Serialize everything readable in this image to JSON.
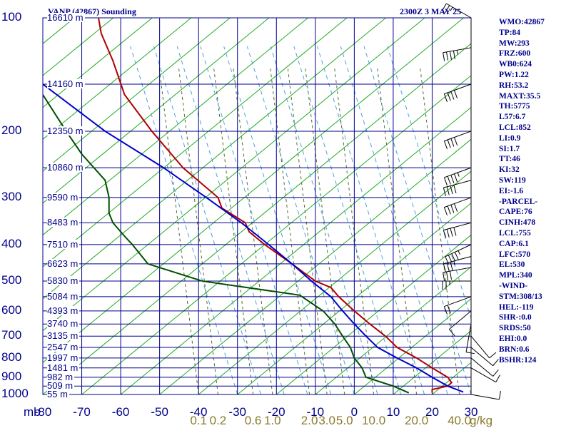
{
  "title_left": "VANP (42867) Sounding",
  "title_right": "2300Z  3 MAY 25",
  "indices": [
    "WMO:42867",
    "TP:84",
    "MW:293",
    "FRZ:600",
    "WB0:624",
    "PW:1.22",
    "RH:53.2",
    "MAXT:35.5",
    "TH:5775",
    "L57:6.7",
    "LCL:852",
    "LI:0.9",
    "SI:1.7",
    "TT:46",
    "KI:32",
    "SW:119",
    "EI:-1.6",
    "-PARCEL-",
    "CAPE:76",
    "CINH:478",
    "LCL:755",
    "CAP:6.1",
    "LFC:570",
    "EL:530",
    "MPL:340",
    "-WIND-",
    "STM:308/13",
    "HEL:-119",
    "SHR-:0.0",
    "SRDS:50",
    "EHI:0.0",
    "BRN:0.6",
    "BSHR:124"
  ],
  "chart_data": {
    "type": "line",
    "y_unit": "mb",
    "y_scale": "log",
    "y_range": [
      1000,
      100
    ],
    "x_range": [
      -80,
      30
    ],
    "pressure_ticks": [
      "100",
      "200",
      "300",
      "400",
      "500",
      "600",
      "700",
      "800",
      "900",
      "1000"
    ],
    "pressure_tick_values": [
      100,
      200,
      300,
      400,
      500,
      600,
      700,
      800,
      900,
      1000
    ],
    "temperature_ticks": [
      "-80",
      "-70",
      "-60",
      "-50",
      "-40",
      "-30",
      "-20",
      "-10",
      "0",
      "10",
      "20",
      "30"
    ],
    "temperature_tick_values": [
      -80,
      -70,
      -60,
      -50,
      -40,
      -30,
      -20,
      -10,
      0,
      10,
      20,
      30
    ],
    "height_labels": [
      {
        "p": 100,
        "text": "16610 m"
      },
      {
        "p": 150,
        "text": "14160 m"
      },
      {
        "p": 200,
        "text": "12350 m"
      },
      {
        "p": 250,
        "text": "10860 m"
      },
      {
        "p": 300,
        "text": "9590 m"
      },
      {
        "p": 350,
        "text": "8483 m"
      },
      {
        "p": 400,
        "text": "7510 m"
      },
      {
        "p": 450,
        "text": "6623 m"
      },
      {
        "p": 500,
        "text": "5830 m"
      },
      {
        "p": 550,
        "text": "5084 m"
      },
      {
        "p": 600,
        "text": "4393 m"
      },
      {
        "p": 650,
        "text": "3740 m"
      },
      {
        "p": 700,
        "text": "3135 m"
      },
      {
        "p": 750,
        "text": "2547 m"
      },
      {
        "p": 800,
        "text": "1997 m"
      },
      {
        "p": 850,
        "text": "1481 m"
      },
      {
        "p": 900,
        "text": "982 m"
      },
      {
        "p": 950,
        "text": "509 m"
      },
      {
        "p": 1000,
        "text": "55 m"
      }
    ],
    "mixing_ratio_unit": "g/kg",
    "mixing_ratio_labels": [
      {
        "t": -40,
        "text": "0.1"
      },
      {
        "t": -35,
        "text": "0.2"
      },
      {
        "t": -26,
        "text": "0.6"
      },
      {
        "t": -21,
        "text": "1.0"
      },
      {
        "t": -11.5,
        "text": "2.0"
      },
      {
        "t": -7,
        "text": "3.0"
      },
      {
        "t": -2.5,
        "text": "5.0"
      },
      {
        "t": 5,
        "text": "10.0"
      },
      {
        "t": 16,
        "text": "20.0"
      },
      {
        "t": 27,
        "text": "40.0"
      }
    ],
    "series": [
      {
        "role": "temperature",
        "color": "#b00000",
        "points": [
          [
            96,
            -66
          ],
          [
            110,
            -65
          ],
          [
            130,
            -62
          ],
          [
            160,
            -59
          ],
          [
            200,
            -52
          ],
          [
            250,
            -44
          ],
          [
            300,
            -35
          ],
          [
            320,
            -34
          ],
          [
            350,
            -28
          ],
          [
            370,
            -27
          ],
          [
            400,
            -23
          ],
          [
            450,
            -16
          ],
          [
            500,
            -10
          ],
          [
            520,
            -6
          ],
          [
            550,
            -4
          ],
          [
            600,
            0
          ],
          [
            650,
            4
          ],
          [
            700,
            8
          ],
          [
            750,
            11
          ],
          [
            800,
            16
          ],
          [
            850,
            20
          ],
          [
            900,
            24
          ],
          [
            930,
            25
          ],
          [
            950,
            24
          ],
          [
            970,
            20
          ],
          [
            990,
            20
          ]
        ]
      },
      {
        "role": "dewpoint",
        "color": "#004f00",
        "points": [
          [
            160,
            -80
          ],
          [
            200,
            -74
          ],
          [
            230,
            -70
          ],
          [
            270,
            -64
          ],
          [
            300,
            -63
          ],
          [
            330,
            -63
          ],
          [
            350,
            -62
          ],
          [
            380,
            -59
          ],
          [
            400,
            -57
          ],
          [
            450,
            -53
          ],
          [
            500,
            -39
          ],
          [
            545,
            -14
          ],
          [
            600,
            -8
          ],
          [
            650,
            -5
          ],
          [
            700,
            -3
          ],
          [
            750,
            -1
          ],
          [
            800,
            0
          ],
          [
            850,
            2
          ],
          [
            900,
            3
          ],
          [
            950,
            10
          ],
          [
            990,
            14
          ]
        ]
      },
      {
        "role": "parcel",
        "color": "#0000cc",
        "points": [
          [
            150,
            -80
          ],
          [
            200,
            -64
          ],
          [
            250,
            -49
          ],
          [
            300,
            -38
          ],
          [
            350,
            -29
          ],
          [
            400,
            -22
          ],
          [
            450,
            -16
          ],
          [
            500,
            -11
          ],
          [
            550,
            -6
          ],
          [
            600,
            -3
          ],
          [
            650,
            0
          ],
          [
            700,
            3
          ],
          [
            750,
            6
          ],
          [
            800,
            11
          ],
          [
            850,
            16
          ],
          [
            900,
            20
          ],
          [
            950,
            24
          ],
          [
            985,
            28
          ]
        ]
      }
    ],
    "wind_barbs": [
      {
        "p": 100,
        "dir": 300,
        "kt": 25
      },
      {
        "p": 120,
        "dir": 260,
        "kt": 45
      },
      {
        "p": 150,
        "dir": 250,
        "kt": 40
      },
      {
        "p": 200,
        "dir": 250,
        "kt": 40
      },
      {
        "p": 250,
        "dir": 250,
        "kt": 45
      },
      {
        "p": 270,
        "dir": 255,
        "kt": 40
      },
      {
        "p": 300,
        "dir": 250,
        "kt": 40
      },
      {
        "p": 350,
        "dir": 255,
        "kt": 40
      },
      {
        "p": 400,
        "dir": 245,
        "kt": 45
      },
      {
        "p": 430,
        "dir": 255,
        "kt": 35
      },
      {
        "p": 460,
        "dir": 260,
        "kt": 30
      },
      {
        "p": 500,
        "dir": 270,
        "kt": 25
      },
      {
        "p": 550,
        "dir": 250,
        "kt": 20
      },
      {
        "p": 600,
        "dir": 230,
        "kt": 10
      },
      {
        "p": 650,
        "dir": 190,
        "kt": 10
      },
      {
        "p": 700,
        "dir": 140,
        "kt": 10
      },
      {
        "p": 750,
        "dir": 130,
        "kt": 10
      },
      {
        "p": 800,
        "dir": 130,
        "kt": 10
      },
      {
        "p": 850,
        "dir": 120,
        "kt": 10
      },
      {
        "p": 1000,
        "dir": 100,
        "kt": 10
      }
    ]
  }
}
